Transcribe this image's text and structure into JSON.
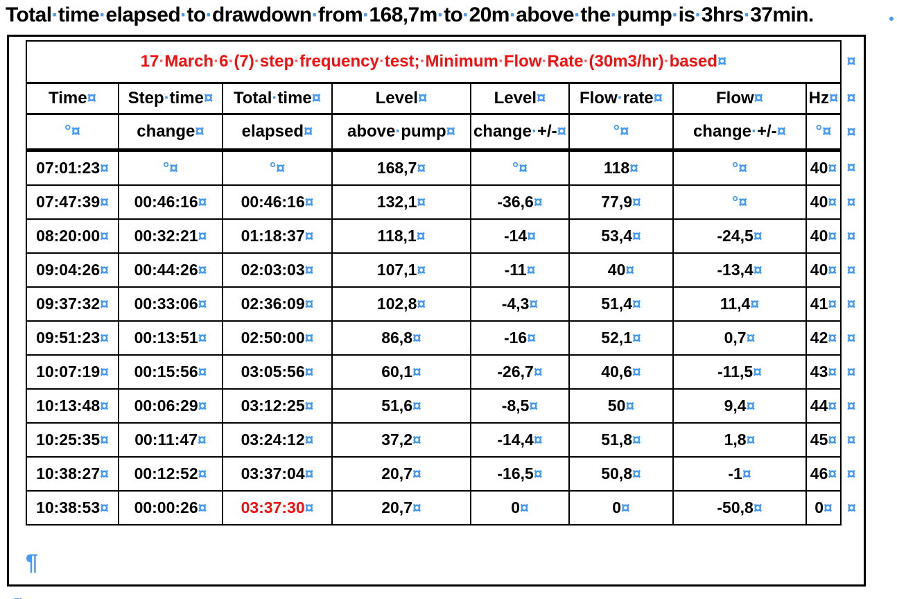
{
  "doc_title": "Total time elapsed to drawdown from 168,7m to 20m above the pump is 3hrs 37min.",
  "marks": {
    "space_dot": "·",
    "cell_end_marker": "¤",
    "nbsp_mark": "°",
    "pilcrow": "¶"
  },
  "colors": {
    "formatting_mark_blue": "#459af3",
    "caption_red": "#f50f0f",
    "highlight_red": "#f50f0f"
  },
  "table": {
    "caption": "17 March 6 (7) step frequency test; Minimum Flow Rate (30m3/hr) based",
    "header_row1": [
      "Time",
      "Step time",
      "Total time",
      "Level",
      "Level",
      "Flow rate",
      "Flow",
      "Hz"
    ],
    "header_row2": [
      "°",
      "change",
      "elapsed",
      "above pump",
      "change +/-",
      "°",
      "change +/-",
      "°"
    ],
    "rows": [
      [
        "07:01:23",
        "°",
        "°",
        "168,7",
        "°",
        "118",
        "°",
        "40"
      ],
      [
        "07:47:39",
        "00:46:16",
        "00:46:16",
        "132,1",
        "-36,6",
        "77,9",
        "°",
        "40"
      ],
      [
        "08:20:00",
        "00:32:21",
        "01:18:37",
        "118,1",
        "-14",
        "53,4",
        "-24,5",
        "40"
      ],
      [
        "09:04:26",
        "00:44:26",
        "02:03:03",
        "107,1",
        "-11",
        "40",
        "-13,4",
        "40"
      ],
      [
        "09:37:32",
        "00:33:06",
        "02:36:09",
        "102,8",
        "-4,3",
        "51,4",
        "11,4",
        "41"
      ],
      [
        "09:51:23",
        "00:13:51",
        "02:50:00",
        "86,8",
        "-16",
        "52,1",
        "0,7",
        "42"
      ],
      [
        "10:07:19",
        "00:15:56",
        "03:05:56",
        "60,1",
        "-26,7",
        "40,6",
        "-11,5",
        "43"
      ],
      [
        "10:13:48",
        "00:06:29",
        "03:12:25",
        "51,6",
        "-8,5",
        "50",
        "9,4",
        "44"
      ],
      [
        "10:25:35",
        "00:11:47",
        "03:24:12",
        "37,2",
        "-14,4",
        "51,8",
        "1,8",
        "45"
      ],
      [
        "10:38:27",
        "00:12:52",
        "03:37:04",
        "20,7",
        "-16,5",
        "50,8",
        "-1",
        "46"
      ],
      [
        "10:38:53",
        "00:00:26",
        "03:37:30",
        "20,7",
        "0",
        "0",
        "-50,8",
        "0"
      ]
    ],
    "red_cell": {
      "row_index": 10,
      "col_index": 2
    }
  }
}
